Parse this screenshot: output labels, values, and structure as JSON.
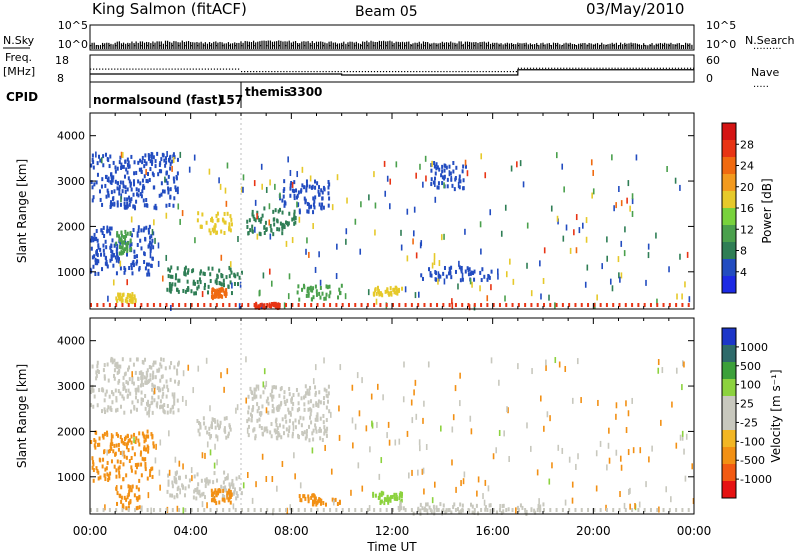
{
  "header": {
    "station": "King Salmon (fitACF)",
    "beam": "Beam 05",
    "date": "03/May/2010"
  },
  "strip_labels": {
    "nsky": "N.Sky",
    "nsearch": "N.Search",
    "nsearch_marker": "·········",
    "freq_line1": "Freq.",
    "freq_line2": "[MHz]",
    "nave": "Nave",
    "nave_marker": "·····",
    "cpid": "CPID"
  },
  "cpid_segments": [
    {
      "name": "normalsound (fast)",
      "id": "157",
      "start_hour": 0,
      "end_hour": 6
    },
    {
      "name": "themis",
      "id": "3300",
      "start_hour": 6,
      "end_hour": 24
    }
  ],
  "colors": {
    "power": [
      "#1c2ae4",
      "#224cc0",
      "#2f7e55",
      "#4aa04c",
      "#78d23c",
      "#e6c92a",
      "#f39a1e",
      "#f06a10",
      "#e83414",
      "#d41414"
    ],
    "velocity": [
      "#e61212",
      "#f25a12",
      "#f29014",
      "#f2b624",
      "#c8c8be",
      "#c8c8be",
      "#8cd23e",
      "#3ca03a",
      "#2e6a6a",
      "#1c36c8"
    ]
  },
  "chart_data": [
    {
      "type": "line",
      "title": "",
      "series": [
        {
          "name": "N.Sky",
          "values": [
            1,
            2,
            2,
            3,
            2,
            2,
            3,
            4,
            3,
            2,
            2,
            3,
            2,
            2,
            2,
            2,
            1,
            1,
            1,
            1,
            1,
            1,
            1,
            1
          ]
        },
        {
          "name": "N.Search",
          "values": [
            1,
            1,
            1,
            1,
            1,
            1,
            1,
            1,
            1,
            1,
            1,
            1,
            1,
            1,
            1,
            1,
            1,
            1,
            1,
            1,
            1,
            1,
            1,
            1
          ]
        }
      ],
      "left_ticks": [
        "10^5",
        "10^0"
      ],
      "right_ticks": [
        "10^5",
        "10^0"
      ],
      "ylim": [
        0,
        5
      ],
      "yscale": "log"
    },
    {
      "type": "line",
      "series": [
        {
          "name": "Freq.",
          "x": [
            0,
            10,
            10,
            17,
            17,
            24
          ],
          "values": [
            10.8,
            10.8,
            10.4,
            10.4,
            12.5,
            12.5
          ]
        },
        {
          "name": "Nave",
          "x": [
            0,
            6,
            6,
            17,
            17,
            24
          ],
          "values": [
            30,
            30,
            24,
            24,
            32,
            32
          ]
        }
      ],
      "left_ticks": [
        "18",
        "8"
      ],
      "right_ticks": [
        "60",
        "0"
      ],
      "ylim_left": [
        8,
        18
      ],
      "ylim_right": [
        0,
        60
      ]
    },
    {
      "type": "heatmap",
      "xlabel": "",
      "ylabel": "Slant Range [km]",
      "x_ticks": [
        "00:00",
        "04:00",
        "08:00",
        "12:00",
        "16:00",
        "20:00",
        "00:00"
      ],
      "xlim": [
        0,
        24
      ],
      "y_ticks": [
        "1000",
        "2000",
        "3000",
        "4000"
      ],
      "ylim": [
        180,
        4500
      ],
      "colorbar_label": "Power [dB]",
      "colorbar_ticks": [
        "4",
        "8",
        "12",
        "16",
        "20",
        "24",
        "28"
      ],
      "colorbar_range": [
        0,
        30
      ],
      "regions": [
        {
          "x": [
            0.0,
            2.5
          ],
          "y": [
            900,
            2000
          ],
          "value": 4
        },
        {
          "x": [
            1.0,
            1.6
          ],
          "y": [
            1400,
            1900
          ],
          "value": 10
        },
        {
          "x": [
            1.0,
            1.8
          ],
          "y": [
            330,
            520
          ],
          "value": 16
        },
        {
          "x": [
            0.0,
            3.5
          ],
          "y": [
            2400,
            3600
          ],
          "value": 4
        },
        {
          "x": [
            3.0,
            6.0
          ],
          "y": [
            520,
            1100
          ],
          "value": 6
        },
        {
          "x": [
            4.2,
            5.6
          ],
          "y": [
            1850,
            2300
          ],
          "value": 16
        },
        {
          "x": [
            4.8,
            5.4
          ],
          "y": [
            420,
            620
          ],
          "value": 22
        },
        {
          "x": [
            6.2,
            8.2
          ],
          "y": [
            1800,
            2400
          ],
          "value": 6
        },
        {
          "x": [
            7.5,
            9.5
          ],
          "y": [
            2300,
            3000
          ],
          "value": 4
        },
        {
          "x": [
            8.2,
            10.0
          ],
          "y": [
            380,
            700
          ],
          "value": 10
        },
        {
          "x": [
            11.2,
            12.4
          ],
          "y": [
            480,
            650
          ],
          "value": 16
        },
        {
          "x": [
            13.5,
            15.0
          ],
          "y": [
            2800,
            3400
          ],
          "value": 4
        },
        {
          "x": [
            13.0,
            16.0
          ],
          "y": [
            800,
            1100
          ],
          "value": 4
        },
        {
          "x": [
            6.5,
            7.5
          ],
          "y": [
            200,
            300
          ],
          "value": 24
        }
      ]
    },
    {
      "type": "heatmap",
      "xlabel": "Time UT",
      "ylabel": "Slant Range [km]",
      "x_ticks": [
        "00:00",
        "04:00",
        "08:00",
        "12:00",
        "16:00",
        "20:00",
        "00:00"
      ],
      "xlim": [
        0,
        24
      ],
      "y_ticks": [
        "1000",
        "2000",
        "3000",
        "4000"
      ],
      "ylim": [
        180,
        4500
      ],
      "colorbar_label": "Velocity [m s⁻¹]",
      "colorbar_ticks": [
        "-1000",
        "-500",
        "-100",
        "-25",
        "25",
        "100",
        "500",
        "1000"
      ],
      "colorbar_range": [
        -1000,
        1000
      ],
      "regions": [
        {
          "x": [
            0.0,
            2.5
          ],
          "y": [
            900,
            2000
          ],
          "value": -300
        },
        {
          "x": [
            1.0,
            2.0
          ],
          "y": [
            300,
            800
          ],
          "value": -200
        },
        {
          "x": [
            0.0,
            3.5
          ],
          "y": [
            2400,
            3600
          ],
          "value": 0
        },
        {
          "x": [
            3.0,
            6.0
          ],
          "y": [
            520,
            1100
          ],
          "value": 0
        },
        {
          "x": [
            4.2,
            5.6
          ],
          "y": [
            1850,
            2300
          ],
          "value": 0
        },
        {
          "x": [
            4.8,
            5.6
          ],
          "y": [
            420,
            720
          ],
          "value": -200
        },
        {
          "x": [
            6.2,
            9.5
          ],
          "y": [
            1800,
            3000
          ],
          "value": 0
        },
        {
          "x": [
            8.2,
            10.0
          ],
          "y": [
            380,
            600
          ],
          "value": -100
        },
        {
          "x": [
            11.2,
            12.4
          ],
          "y": [
            420,
            650
          ],
          "value": 200
        },
        {
          "x": [
            12.0,
            18.0
          ],
          "y": [
            180,
            400
          ],
          "value": 50
        }
      ]
    }
  ]
}
